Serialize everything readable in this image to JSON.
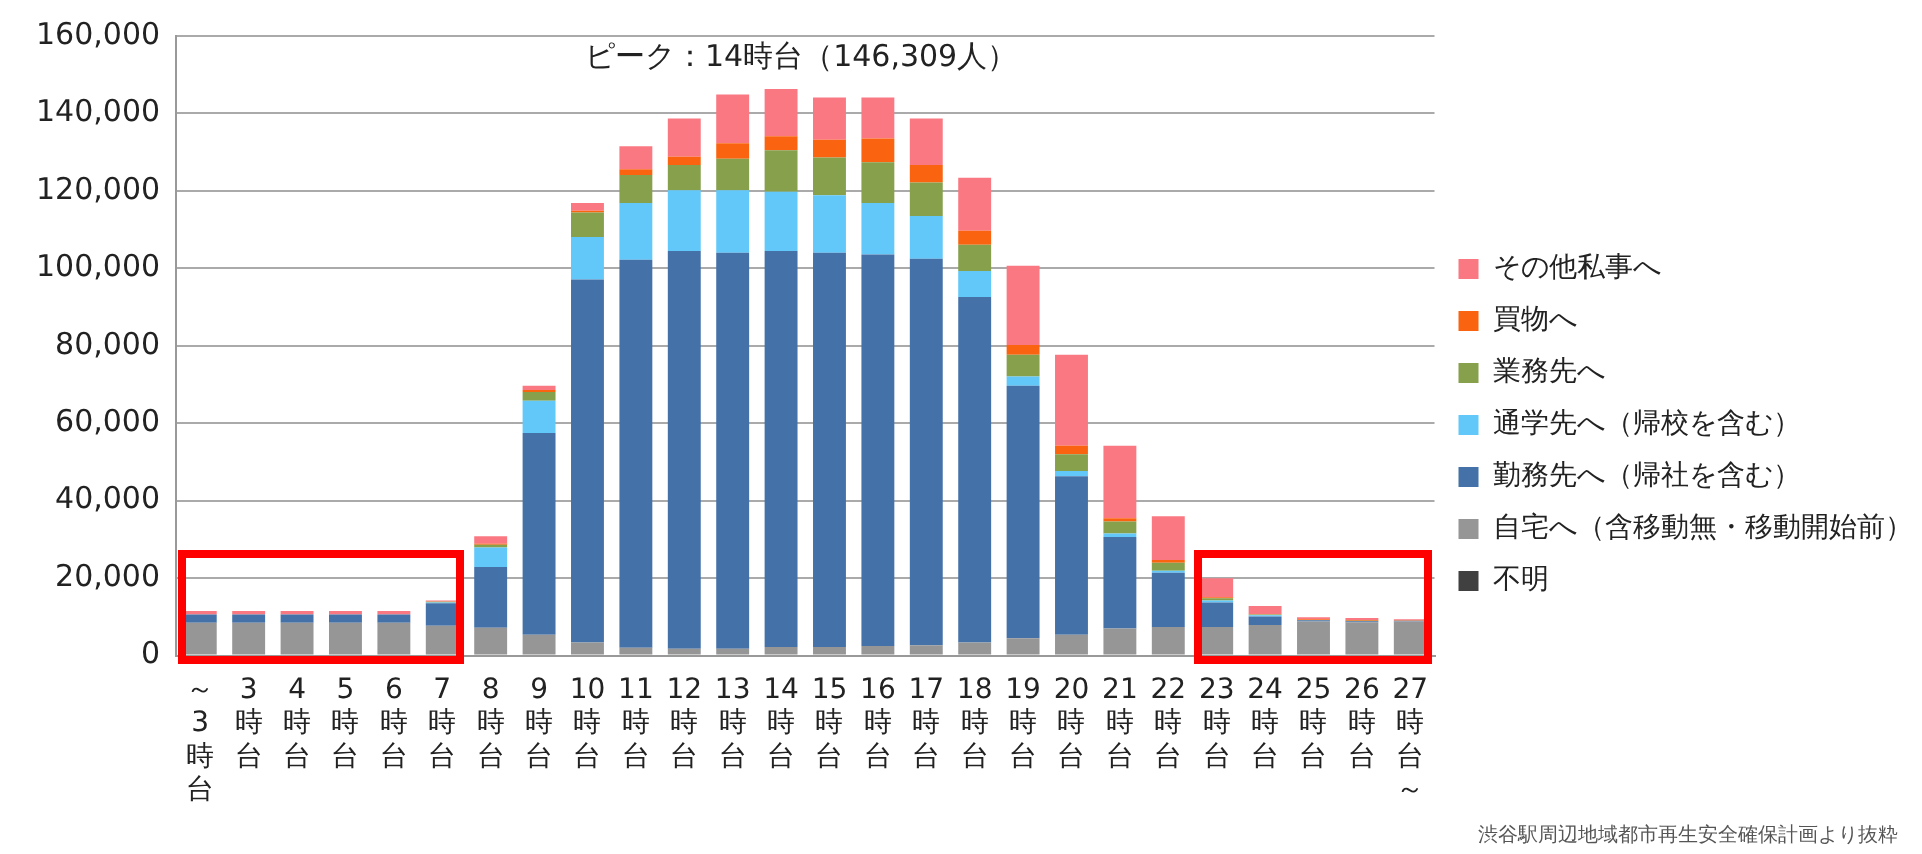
{
  "chart_data": {
    "type": "bar",
    "stacked": true,
    "categories": [
      "～3時台",
      "3時台",
      "4時台",
      "5時台",
      "6時台",
      "7時台",
      "8時台",
      "9時台",
      "10時台",
      "11時台",
      "12時台",
      "13時台",
      "14時台",
      "15時台",
      "16時台",
      "17時台",
      "18時台",
      "19時台",
      "20時台",
      "21時台",
      "22時台",
      "23時台",
      "24時台",
      "25時台",
      "26時台",
      "27時台～"
    ],
    "series": [
      {
        "name": "不明",
        "color": "#404040",
        "values": [
          0,
          0,
          0,
          0,
          0,
          0,
          0,
          0,
          0,
          0,
          0,
          0,
          0,
          0,
          0,
          0,
          0,
          0,
          0,
          0,
          0,
          0,
          0,
          0,
          0,
          0
        ]
      },
      {
        "name": "自宅へ（含移動無・移動開始前）",
        "color": "#969696",
        "values": [
          8500,
          8500,
          8500,
          8500,
          8500,
          7700,
          7200,
          5400,
          3400,
          2000,
          1800,
          1800,
          2200,
          2200,
          2500,
          2700,
          3400,
          4500,
          5400,
          7000,
          7400,
          7400,
          7900,
          8800,
          8600,
          8800
        ]
      },
      {
        "name": "勤務先へ（帰社を含む）",
        "color": "#4472a8",
        "values": [
          2100,
          2100,
          2100,
          2100,
          2100,
          5800,
          15700,
          52100,
          93700,
          100200,
          102700,
          102200,
          102300,
          101800,
          101100,
          99800,
          89200,
          65200,
          40900,
          23600,
          14000,
          6300,
          2200,
          300,
          300,
          200
        ]
      },
      {
        "name": "通学先へ（帰校を含む）",
        "color": "#62c8fa",
        "values": [
          0,
          0,
          0,
          0,
          0,
          200,
          5000,
          8300,
          11000,
          14700,
          15700,
          16200,
          15300,
          14900,
          13300,
          11000,
          6700,
          2400,
          1400,
          900,
          500,
          500,
          300,
          0,
          0,
          0
        ]
      },
      {
        "name": "業務先へ",
        "color": "#86a04c",
        "values": [
          0,
          0,
          0,
          0,
          0,
          200,
          700,
          2300,
          6300,
          7200,
          6500,
          8100,
          10700,
          9700,
          10500,
          8700,
          6800,
          5600,
          4300,
          3100,
          2100,
          600,
          200,
          100,
          100,
          0
        ]
      },
      {
        "name": "買物へ",
        "color": "#fa6410",
        "values": [
          0,
          0,
          0,
          0,
          0,
          100,
          300,
          500,
          500,
          1500,
          2100,
          4000,
          3600,
          4600,
          6100,
          4500,
          3600,
          2500,
          2200,
          900,
          700,
          300,
          100,
          200,
          200,
          100
        ]
      },
      {
        "name": "その他私事へ",
        "color": "#fa7882",
        "values": [
          900,
          900,
          900,
          900,
          900,
          200,
          1900,
          1100,
          2000,
          5900,
          9900,
          12600,
          12209,
          10900,
          10600,
          12000,
          13700,
          20500,
          23500,
          18700,
          11300,
          4900,
          2100,
          500,
          500,
          300
        ]
      }
    ],
    "ylim": [
      0,
      160000
    ],
    "yticks": [
      0,
      {
        "value": 20000,
        "label": "20,000"
      },
      {
        "value": 40000,
        "label": "40,000"
      },
      {
        "value": 60000,
        "label": "60,000"
      },
      {
        "value": 80000,
        "label": "80,000"
      },
      {
        "value": 100000,
        "label": "100,000"
      },
      {
        "value": 120000,
        "label": "120,000"
      },
      {
        "value": 140000,
        "label": "140,000"
      },
      {
        "value": 160000,
        "label": "160,000"
      }
    ],
    "grid": "y",
    "legend": "right",
    "annotations": [
      {
        "text": "ピーク：14時台（146,309人）",
        "x": "14時台",
        "y": 146309
      },
      "渋谷駅周辺地域都市再生安全確保計画より抜粋"
    ]
  }
}
